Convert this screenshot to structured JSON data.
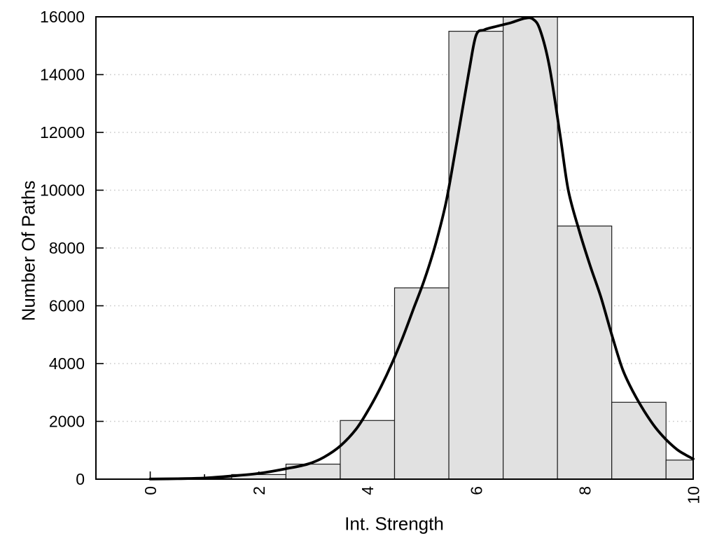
{
  "figure": {
    "background": "#ffffff"
  },
  "chart_data": {
    "type": "bar",
    "subtype": "histogram-with-density-curve",
    "title": "",
    "xlabel": "Int. Strength",
    "ylabel": "Number Of Paths",
    "xlim": [
      -1,
      10
    ],
    "ylim": [
      0,
      16000
    ],
    "x_major_ticks": [
      0,
      2,
      4,
      6,
      8,
      10
    ],
    "x_major_tick_labels": [
      "0",
      "2",
      "4",
      "6",
      "8",
      "10"
    ],
    "x_minor_ticks": [
      1,
      3,
      5,
      7,
      9
    ],
    "y_ticks": [
      0,
      2000,
      4000,
      6000,
      8000,
      10000,
      12000,
      14000,
      16000
    ],
    "y_tick_labels": [
      "0",
      "2000",
      "4000",
      "6000",
      "8000",
      "10000",
      "12000",
      "14000",
      "16000"
    ],
    "grid": "horizontal-dotted",
    "legend_position": "none",
    "x_tick_label_rotation_deg": -90,
    "histogram": {
      "bin_width": 1,
      "bin_centers": [
        0,
        1,
        2,
        3,
        4,
        5,
        6,
        7,
        8,
        9,
        10
      ],
      "counts": [
        0,
        25,
        160,
        520,
        2030,
        6620,
        15500,
        16000,
        8760,
        2660,
        660
      ],
      "last_bin_clipped_at_x": 10
    },
    "density_curve": {
      "points": [
        [
          0,
          5
        ],
        [
          0.5,
          15
        ],
        [
          1,
          40
        ],
        [
          1.5,
          110
        ],
        [
          2,
          200
        ],
        [
          2.5,
          360
        ],
        [
          2.9,
          520
        ],
        [
          3.2,
          760
        ],
        [
          3.5,
          1150
        ],
        [
          3.8,
          1750
        ],
        [
          4.05,
          2500
        ],
        [
          4.25,
          3200
        ],
        [
          4.45,
          4000
        ],
        [
          4.65,
          4900
        ],
        [
          4.85,
          5900
        ],
        [
          5.05,
          6900
        ],
        [
          5.25,
          8100
        ],
        [
          5.45,
          9600
        ],
        [
          5.65,
          11700
        ],
        [
          5.87,
          14100
        ],
        [
          6.0,
          15350
        ],
        [
          6.15,
          15550
        ],
        [
          6.4,
          15680
        ],
        [
          6.65,
          15800
        ],
        [
          6.9,
          15950
        ],
        [
          7.05,
          15920
        ],
        [
          7.18,
          15550
        ],
        [
          7.35,
          14300
        ],
        [
          7.55,
          11900
        ],
        [
          7.7,
          10000
        ],
        [
          7.9,
          8600
        ],
        [
          8.1,
          7400
        ],
        [
          8.3,
          6300
        ],
        [
          8.5,
          5000
        ],
        [
          8.7,
          3800
        ],
        [
          8.9,
          3000
        ],
        [
          9.1,
          2350
        ],
        [
          9.3,
          1800
        ],
        [
          9.5,
          1370
        ],
        [
          9.7,
          1030
        ],
        [
          9.85,
          850
        ],
        [
          10,
          700
        ]
      ]
    },
    "colors": {
      "bar_fill": "#e1e1e1",
      "bar_stroke": "#1c1c1c",
      "curve": "#000000",
      "grid": "#c9c9c9",
      "axis": "#000000",
      "text": "#000000",
      "background": "#ffffff"
    }
  }
}
